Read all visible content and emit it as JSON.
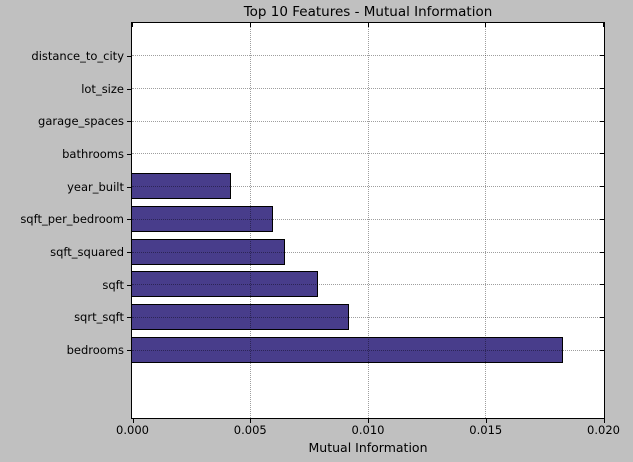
{
  "figure": {
    "background_color": "#c0c0c0",
    "axes_background_color": "#ffffff"
  },
  "chart_data": {
    "type": "bar",
    "orientation": "horizontal",
    "title": "Top 10 Features - Mutual Information",
    "xlabel": "Mutual Information",
    "ylabel": "",
    "categories_top_to_bottom": [
      "distance_to_city",
      "lot_size",
      "garage_spaces",
      "bathrooms",
      "year_built",
      "sqft_per_bedroom",
      "sqft_squared",
      "sqft",
      "sqrt_sqft",
      "bedrooms"
    ],
    "values_top_to_bottom": [
      0.0,
      0.0,
      0.0,
      0.0,
      0.0042,
      0.006,
      0.0065,
      0.0079,
      0.0092,
      0.0183
    ],
    "xlim": [
      0.0,
      0.02
    ],
    "x_ticks": [
      0.0,
      0.005,
      0.01,
      0.015,
      0.02
    ],
    "x_tick_labels": [
      "0.000",
      "0.005",
      "0.010",
      "0.015",
      "0.020"
    ],
    "grid": "dotted, drawn over bars, vertical at x ticks and horizontal at category centers",
    "legend": "none",
    "bar_fill_color": "#483d8b",
    "bar_edge_color": "#000000"
  }
}
